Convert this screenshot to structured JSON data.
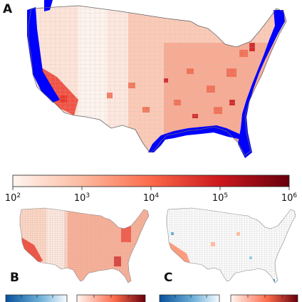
{
  "panels": {
    "a": {
      "label": "A"
    },
    "b": {
      "label": "B"
    },
    "c": {
      "label": "C"
    }
  },
  "colorbar": {
    "scale": "log",
    "min_exponent": 2,
    "max_exponent": 6,
    "tick_labels": [
      {
        "base": "10",
        "exp": "2"
      },
      {
        "base": "10",
        "exp": "3"
      },
      {
        "base": "10",
        "exp": "4"
      },
      {
        "base": "10",
        "exp": "5"
      },
      {
        "base": "10",
        "exp": "6"
      }
    ],
    "colors": [
      "#fff5f0",
      "#fcbba1",
      "#fb6a4a",
      "#cb181d",
      "#67000d"
    ]
  },
  "mini_colorbars": {
    "diverging_low": [
      "#08519c",
      "#6baed6",
      "#f7fbff"
    ],
    "diverging_high": [
      "#fff5f0",
      "#fb6a4a",
      "#67000d"
    ]
  },
  "colors": {
    "coastal_blue": "#0000ff",
    "county_border": "#bdbdbd",
    "background": "#ffffff"
  }
}
